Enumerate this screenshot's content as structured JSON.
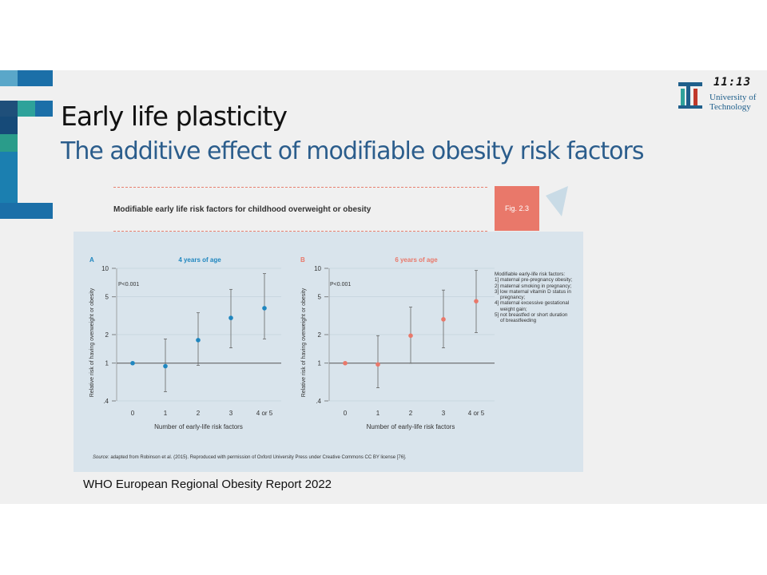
{
  "slide": {
    "title": "Early life plasticity",
    "subtitle": "The additive effect of modifiable obesity risk factors",
    "caption": "WHO European Regional Obesity Report 2022",
    "clock": "11:13",
    "logo": {
      "line1": "University of",
      "line2": "Technology"
    },
    "colors": {
      "title": "#111111",
      "subtitle": "#2b5d8c",
      "accent": "#e9786a",
      "panel": "#d9e4ec"
    }
  },
  "figure": {
    "title": "Modifiable early life risk factors for childhood overweight or obesity",
    "badge": "Fig. 2.3",
    "source_label": "Source",
    "source_text": ": adapted from Robinson et al. (2015). Reproduced with permission of Oxford University Press under Creative Commons CC BY license [76].",
    "legend_title": "Modifiable early-life risk factors:",
    "legend_items": [
      "1] maternal pre-pregnancy obesity;",
      "2] maternal smoking in pregnancy;",
      "3] low maternal vitamin D status in",
      "pregnancy;",
      "4] maternal excessive gestational",
      "weight gain;",
      "5] not breastfed or short duration",
      "of breastfeeding"
    ]
  },
  "chart_data": [
    {
      "type": "scatter",
      "panel": "A",
      "title": "4 years of age",
      "annotation": "P<0.001",
      "xlabel": "Number of early-life risk factors",
      "ylabel": "Relative risk of having overweight or obesity",
      "y_scale": "log",
      "ylim": [
        0.4,
        10
      ],
      "yticks": [
        ".4",
        "1",
        "2",
        "5",
        "10"
      ],
      "yticks_values": [
        0.4,
        1,
        2,
        5,
        10
      ],
      "categories": [
        "0",
        "1",
        "2",
        "3",
        "4 or 5"
      ],
      "values": [
        1.0,
        0.93,
        1.75,
        3.0,
        3.8
      ],
      "ci_low": [
        null,
        0.5,
        0.95,
        1.45,
        1.8
      ],
      "ci_high": [
        null,
        1.8,
        3.4,
        6.0,
        8.8
      ],
      "color": "#1f86bf"
    },
    {
      "type": "scatter",
      "panel": "B",
      "title": "6 years of age",
      "annotation": "P<0.001",
      "xlabel": "Number of early-life risk factors",
      "ylabel": "Relative risk of having overweight or obesity",
      "y_scale": "log",
      "ylim": [
        0.4,
        10
      ],
      "yticks": [
        ".4",
        "1",
        "2",
        "5",
        "10"
      ],
      "yticks_values": [
        0.4,
        1,
        2,
        5,
        10
      ],
      "categories": [
        "0",
        "1",
        "2",
        "3",
        "4 or 5"
      ],
      "values": [
        1.0,
        0.97,
        1.95,
        2.9,
        4.5
      ],
      "ci_low": [
        null,
        0.55,
        1.0,
        1.45,
        2.1
      ],
      "ci_high": [
        null,
        1.95,
        3.9,
        5.9,
        9.5
      ],
      "color": "#e9786a"
    }
  ]
}
